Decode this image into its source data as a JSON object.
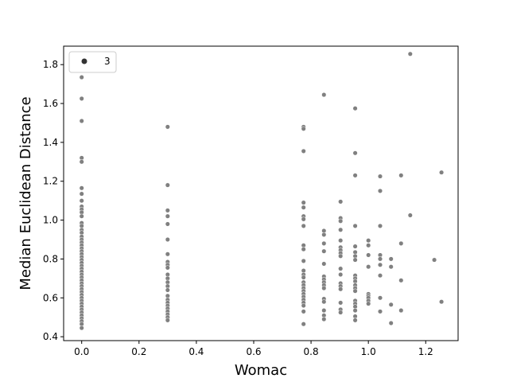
{
  "chart_data": {
    "type": "scatter",
    "xlabel": "Womac",
    "ylabel": "Median Euclidean Distance",
    "xlim": [
      -0.063,
      1.313
    ],
    "ylim": [
      0.38,
      1.895
    ],
    "xticks": [
      "0.0",
      "0.2",
      "0.4",
      "0.6",
      "0.8",
      "1.0",
      "1.2"
    ],
    "xtick_values": [
      0.0,
      0.2,
      0.4,
      0.6,
      0.8,
      1.0,
      1.2
    ],
    "yticks": [
      "0.4",
      "0.6",
      "0.8",
      "1.0",
      "1.2",
      "1.4",
      "1.6",
      "1.8"
    ],
    "ytick_values": [
      0.4,
      0.6,
      0.8,
      1.0,
      1.2,
      1.4,
      1.6,
      1.8
    ],
    "grid": false,
    "legend": {
      "placement": "top-left",
      "label": "3"
    },
    "marker_color": "#808080",
    "series": [
      {
        "name": "3",
        "points": [
          [
            0.0,
            1.735
          ],
          [
            0.0,
            1.625
          ],
          [
            0.0,
            1.51
          ],
          [
            0.0,
            1.32
          ],
          [
            0.0,
            1.3
          ],
          [
            0.0,
            1.165
          ],
          [
            0.0,
            1.135
          ],
          [
            0.0,
            1.1
          ],
          [
            0.0,
            1.07
          ],
          [
            0.0,
            1.055
          ],
          [
            0.0,
            1.04
          ],
          [
            0.0,
            1.02
          ],
          [
            0.0,
            0.985
          ],
          [
            0.0,
            0.97
          ],
          [
            0.0,
            0.95
          ],
          [
            0.0,
            0.935
          ],
          [
            0.0,
            0.915
          ],
          [
            0.0,
            0.9
          ],
          [
            0.0,
            0.885
          ],
          [
            0.0,
            0.87
          ],
          [
            0.0,
            0.855
          ],
          [
            0.0,
            0.84
          ],
          [
            0.0,
            0.825
          ],
          [
            0.0,
            0.81
          ],
          [
            0.0,
            0.795
          ],
          [
            0.0,
            0.78
          ],
          [
            0.0,
            0.765
          ],
          [
            0.0,
            0.75
          ],
          [
            0.0,
            0.735
          ],
          [
            0.0,
            0.72
          ],
          [
            0.0,
            0.705
          ],
          [
            0.0,
            0.69
          ],
          [
            0.0,
            0.675
          ],
          [
            0.0,
            0.66
          ],
          [
            0.0,
            0.645
          ],
          [
            0.0,
            0.63
          ],
          [
            0.0,
            0.615
          ],
          [
            0.0,
            0.6
          ],
          [
            0.0,
            0.585
          ],
          [
            0.0,
            0.57
          ],
          [
            0.0,
            0.555
          ],
          [
            0.0,
            0.54
          ],
          [
            0.0,
            0.525
          ],
          [
            0.0,
            0.51
          ],
          [
            0.0,
            0.495
          ],
          [
            0.0,
            0.48
          ],
          [
            0.0,
            0.465
          ],
          [
            0.0,
            0.445
          ],
          [
            0.3,
            1.48
          ],
          [
            0.3,
            1.18
          ],
          [
            0.3,
            1.05
          ],
          [
            0.3,
            1.02
          ],
          [
            0.3,
            0.98
          ],
          [
            0.3,
            0.9
          ],
          [
            0.3,
            0.825
          ],
          [
            0.3,
            0.785
          ],
          [
            0.3,
            0.77
          ],
          [
            0.3,
            0.755
          ],
          [
            0.3,
            0.72
          ],
          [
            0.3,
            0.7
          ],
          [
            0.3,
            0.68
          ],
          [
            0.3,
            0.66
          ],
          [
            0.3,
            0.64
          ],
          [
            0.3,
            0.61
          ],
          [
            0.3,
            0.59
          ],
          [
            0.3,
            0.575
          ],
          [
            0.3,
            0.56
          ],
          [
            0.3,
            0.545
          ],
          [
            0.3,
            0.53
          ],
          [
            0.3,
            0.515
          ],
          [
            0.3,
            0.5
          ],
          [
            0.3,
            0.485
          ],
          [
            0.774,
            1.48
          ],
          [
            0.774,
            1.47
          ],
          [
            0.774,
            1.355
          ],
          [
            0.774,
            1.09
          ],
          [
            0.774,
            1.065
          ],
          [
            0.774,
            1.02
          ],
          [
            0.774,
            1.005
          ],
          [
            0.774,
            0.97
          ],
          [
            0.774,
            0.87
          ],
          [
            0.774,
            0.85
          ],
          [
            0.774,
            0.79
          ],
          [
            0.774,
            0.74
          ],
          [
            0.774,
            0.72
          ],
          [
            0.774,
            0.705
          ],
          [
            0.774,
            0.68
          ],
          [
            0.774,
            0.665
          ],
          [
            0.774,
            0.65
          ],
          [
            0.774,
            0.635
          ],
          [
            0.774,
            0.62
          ],
          [
            0.774,
            0.605
          ],
          [
            0.774,
            0.59
          ],
          [
            0.774,
            0.575
          ],
          [
            0.774,
            0.56
          ],
          [
            0.774,
            0.53
          ],
          [
            0.774,
            0.465
          ],
          [
            0.845,
            1.645
          ],
          [
            0.845,
            0.945
          ],
          [
            0.845,
            0.925
          ],
          [
            0.845,
            0.88
          ],
          [
            0.845,
            0.84
          ],
          [
            0.845,
            0.775
          ],
          [
            0.845,
            0.71
          ],
          [
            0.845,
            0.695
          ],
          [
            0.845,
            0.68
          ],
          [
            0.845,
            0.665
          ],
          [
            0.845,
            0.65
          ],
          [
            0.845,
            0.595
          ],
          [
            0.845,
            0.58
          ],
          [
            0.845,
            0.535
          ],
          [
            0.845,
            0.51
          ],
          [
            0.845,
            0.49
          ],
          [
            0.903,
            1.095
          ],
          [
            0.903,
            1.01
          ],
          [
            0.903,
            0.995
          ],
          [
            0.903,
            0.95
          ],
          [
            0.903,
            0.895
          ],
          [
            0.903,
            0.86
          ],
          [
            0.903,
            0.845
          ],
          [
            0.903,
            0.83
          ],
          [
            0.903,
            0.815
          ],
          [
            0.903,
            0.75
          ],
          [
            0.903,
            0.72
          ],
          [
            0.903,
            0.675
          ],
          [
            0.903,
            0.66
          ],
          [
            0.903,
            0.645
          ],
          [
            0.903,
            0.575
          ],
          [
            0.903,
            0.54
          ],
          [
            0.903,
            0.525
          ],
          [
            0.954,
            1.575
          ],
          [
            0.954,
            1.345
          ],
          [
            0.954,
            1.23
          ],
          [
            0.954,
            0.97
          ],
          [
            0.954,
            0.865
          ],
          [
            0.954,
            0.835
          ],
          [
            0.954,
            0.815
          ],
          [
            0.954,
            0.795
          ],
          [
            0.954,
            0.715
          ],
          [
            0.954,
            0.7
          ],
          [
            0.954,
            0.685
          ],
          [
            0.954,
            0.665
          ],
          [
            0.954,
            0.65
          ],
          [
            0.954,
            0.635
          ],
          [
            0.954,
            0.585
          ],
          [
            0.954,
            0.57
          ],
          [
            0.954,
            0.555
          ],
          [
            0.954,
            0.535
          ],
          [
            0.954,
            0.505
          ],
          [
            0.954,
            0.485
          ],
          [
            1.0,
            0.895
          ],
          [
            1.0,
            0.87
          ],
          [
            1.0,
            0.82
          ],
          [
            1.0,
            0.76
          ],
          [
            1.0,
            0.62
          ],
          [
            1.0,
            0.61
          ],
          [
            1.0,
            0.6
          ],
          [
            1.0,
            0.585
          ],
          [
            1.0,
            0.57
          ],
          [
            1.041,
            1.225
          ],
          [
            1.041,
            1.15
          ],
          [
            1.041,
            0.97
          ],
          [
            1.041,
            0.82
          ],
          [
            1.041,
            0.8
          ],
          [
            1.041,
            0.77
          ],
          [
            1.041,
            0.715
          ],
          [
            1.041,
            0.6
          ],
          [
            1.041,
            0.53
          ],
          [
            1.079,
            0.8
          ],
          [
            1.079,
            0.76
          ],
          [
            1.079,
            0.565
          ],
          [
            1.079,
            0.47
          ],
          [
            1.114,
            1.23
          ],
          [
            1.114,
            0.88
          ],
          [
            1.114,
            0.69
          ],
          [
            1.114,
            0.535
          ],
          [
            1.146,
            1.855
          ],
          [
            1.146,
            1.025
          ],
          [
            1.23,
            0.795
          ],
          [
            1.255,
            1.245
          ],
          [
            1.255,
            0.58
          ]
        ]
      }
    ]
  }
}
